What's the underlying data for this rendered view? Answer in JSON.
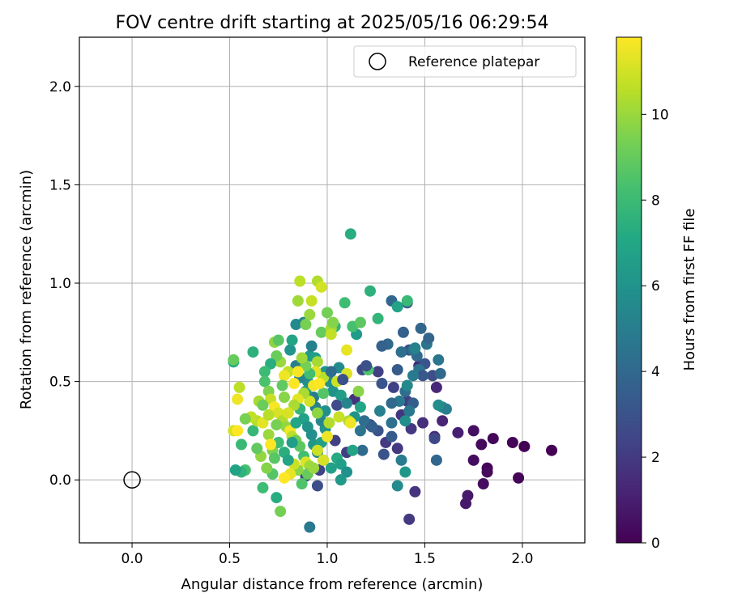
{
  "chart_data": {
    "type": "scatter",
    "title": "FOV centre drift starting at 2025/05/16 06:29:54",
    "xlabel": "Angular distance from reference (arcmin)",
    "ylabel": "Rotation from reference (arcmin)",
    "xlim": [
      -0.27,
      2.32
    ],
    "ylim": [
      -0.32,
      2.25
    ],
    "xticks": [
      0.0,
      0.5,
      1.0,
      1.5,
      2.0
    ],
    "xtick_labels": [
      "0.0",
      "0.5",
      "1.0",
      "1.5",
      "2.0"
    ],
    "yticks": [
      0.0,
      0.5,
      1.0,
      1.5,
      2.0
    ],
    "ytick_labels": [
      "0.0",
      "0.5",
      "1.0",
      "1.5",
      "2.0"
    ],
    "grid": true,
    "legend": {
      "placement": "top-right",
      "entries": [
        "Reference platepar"
      ]
    },
    "reference_point": {
      "x": 0.0,
      "y": 0.0,
      "label": "Reference platepar",
      "marker": "open-circle"
    },
    "colorbar": {
      "label": "Hours from first FF file",
      "colormap": "viridis",
      "range": [
        0,
        11.8
      ],
      "ticks": [
        0,
        2,
        4,
        6,
        8,
        10
      ],
      "tick_labels": [
        "0",
        "2",
        "4",
        "6",
        "8",
        "10"
      ]
    },
    "points": [
      {
        "x": 2.15,
        "y": 0.15,
        "h": 0.0
      },
      {
        "x": 2.01,
        "y": 0.17,
        "h": 0.0
      },
      {
        "x": 1.95,
        "y": 0.19,
        "h": 0.1
      },
      {
        "x": 1.98,
        "y": 0.01,
        "h": 0.1
      },
      {
        "x": 1.85,
        "y": 0.21,
        "h": 0.2
      },
      {
        "x": 1.82,
        "y": 0.06,
        "h": 0.2
      },
      {
        "x": 1.82,
        "y": 0.04,
        "h": 0.3
      },
      {
        "x": 1.8,
        "y": -0.02,
        "h": 0.4
      },
      {
        "x": 1.79,
        "y": 0.18,
        "h": 0.3
      },
      {
        "x": 1.75,
        "y": 0.25,
        "h": 0.5
      },
      {
        "x": 1.75,
        "y": 0.1,
        "h": 0.4
      },
      {
        "x": 1.72,
        "y": -0.08,
        "h": 0.8
      },
      {
        "x": 1.71,
        "y": -0.12,
        "h": 0.8
      },
      {
        "x": 1.67,
        "y": 0.24,
        "h": 1.0
      },
      {
        "x": 1.59,
        "y": 0.3,
        "h": 1.2
      },
      {
        "x": 1.56,
        "y": 0.47,
        "h": 1.3
      },
      {
        "x": 1.55,
        "y": 0.22,
        "h": 1.4
      },
      {
        "x": 1.49,
        "y": 0.29,
        "h": 1.6
      },
      {
        "x": 1.47,
        "y": 0.58,
        "h": 1.6
      },
      {
        "x": 1.45,
        "y": -0.06,
        "h": 1.8
      },
      {
        "x": 1.42,
        "y": -0.2,
        "h": 2.0
      },
      {
        "x": 1.43,
        "y": 0.26,
        "h": 2.0
      },
      {
        "x": 1.41,
        "y": 0.4,
        "h": 2.1
      },
      {
        "x": 1.38,
        "y": 0.33,
        "h": 1.8
      },
      {
        "x": 1.36,
        "y": 0.16,
        "h": 1.9
      },
      {
        "x": 1.34,
        "y": 0.47,
        "h": 2.3
      },
      {
        "x": 1.3,
        "y": 0.19,
        "h": 2.0
      },
      {
        "x": 1.22,
        "y": 0.28,
        "h": 2.4
      },
      {
        "x": 1.14,
        "y": 0.41,
        "h": 1.7
      },
      {
        "x": 1.1,
        "y": 0.14,
        "h": 2.1
      },
      {
        "x": 1.04,
        "y": 0.2,
        "h": 2.2
      },
      {
        "x": 0.98,
        "y": 0.1,
        "h": 2.5
      },
      {
        "x": 0.96,
        "y": 0.05,
        "h": 2.3
      },
      {
        "x": 0.95,
        "y": -0.03,
        "h": 2.8
      },
      {
        "x": 0.91,
        "y": -0.24,
        "h": 4.8
      },
      {
        "x": 0.89,
        "y": 0.02,
        "h": 2.5
      },
      {
        "x": 1.05,
        "y": 0.38,
        "h": 2.7
      },
      {
        "x": 1.18,
        "y": 0.56,
        "h": 2.6
      },
      {
        "x": 1.26,
        "y": 0.55,
        "h": 2.2
      },
      {
        "x": 1.29,
        "y": 0.13,
        "h": 3.0
      },
      {
        "x": 1.5,
        "y": 0.59,
        "h": 3.1
      },
      {
        "x": 1.54,
        "y": 0.53,
        "h": 2.8
      },
      {
        "x": 1.55,
        "y": 0.21,
        "h": 2.6
      },
      {
        "x": 1.42,
        "y": 0.66,
        "h": 2.9
      },
      {
        "x": 1.41,
        "y": 0.9,
        "h": 3.4
      },
      {
        "x": 1.39,
        "y": 0.75,
        "h": 3.6
      },
      {
        "x": 1.33,
        "y": 0.91,
        "h": 3.9
      },
      {
        "x": 1.31,
        "y": 0.69,
        "h": 4.0
      },
      {
        "x": 1.28,
        "y": 0.68,
        "h": 3.7
      },
      {
        "x": 1.38,
        "y": 0.65,
        "h": 4.3
      },
      {
        "x": 1.46,
        "y": 0.63,
        "h": 4.1
      },
      {
        "x": 1.51,
        "y": 0.69,
        "h": 4.5
      },
      {
        "x": 1.52,
        "y": 0.72,
        "h": 3.8
      },
      {
        "x": 1.48,
        "y": 0.77,
        "h": 3.9
      },
      {
        "x": 1.44,
        "y": 0.66,
        "h": 4.4
      },
      {
        "x": 1.47,
        "y": 0.56,
        "h": 4.6
      },
      {
        "x": 1.49,
        "y": 0.53,
        "h": 3.2
      },
      {
        "x": 1.44,
        "y": 0.39,
        "h": 3.5
      },
      {
        "x": 1.4,
        "y": 0.45,
        "h": 4.2
      },
      {
        "x": 1.37,
        "y": 0.4,
        "h": 4.7
      },
      {
        "x": 1.33,
        "y": 0.29,
        "h": 4.4
      },
      {
        "x": 1.33,
        "y": 0.22,
        "h": 3.3
      },
      {
        "x": 1.26,
        "y": 0.25,
        "h": 3.0
      },
      {
        "x": 1.18,
        "y": 0.15,
        "h": 4.1
      },
      {
        "x": 1.19,
        "y": 0.3,
        "h": 4.3
      },
      {
        "x": 1.23,
        "y": 0.27,
        "h": 3.6
      },
      {
        "x": 1.27,
        "y": 0.35,
        "h": 5.1
      },
      {
        "x": 1.38,
        "y": 0.1,
        "h": 4.9
      },
      {
        "x": 1.56,
        "y": 0.1,
        "h": 3.9
      },
      {
        "x": 1.58,
        "y": 0.54,
        "h": 4.0
      },
      {
        "x": 1.57,
        "y": 0.61,
        "h": 4.6
      },
      {
        "x": 1.59,
        "y": 0.37,
        "h": 5.4
      },
      {
        "x": 1.61,
        "y": 0.36,
        "h": 5.0
      },
      {
        "x": 1.57,
        "y": 0.38,
        "h": 5.7
      },
      {
        "x": 1.45,
        "y": 0.67,
        "h": 5.2
      },
      {
        "x": 1.44,
        "y": 0.53,
        "h": 4.8
      },
      {
        "x": 1.41,
        "y": 0.48,
        "h": 5.5
      },
      {
        "x": 1.42,
        "y": 0.35,
        "h": 4.7
      },
      {
        "x": 1.4,
        "y": 0.3,
        "h": 5.8
      },
      {
        "x": 1.36,
        "y": -0.03,
        "h": 5.6
      },
      {
        "x": 1.4,
        "y": 0.04,
        "h": 6.2
      },
      {
        "x": 1.36,
        "y": 0.88,
        "h": 6.8
      },
      {
        "x": 1.41,
        "y": 0.91,
        "h": 7.9
      },
      {
        "x": 1.26,
        "y": 0.82,
        "h": 7.7
      },
      {
        "x": 1.22,
        "y": 0.96,
        "h": 7.5
      },
      {
        "x": 1.15,
        "y": 0.74,
        "h": 6.4
      },
      {
        "x": 1.13,
        "y": 0.78,
        "h": 8.3
      },
      {
        "x": 1.09,
        "y": 0.9,
        "h": 8.1
      },
      {
        "x": 1.12,
        "y": 1.25,
        "h": 7.3
      },
      {
        "x": 1.17,
        "y": 0.8,
        "h": 8.8
      },
      {
        "x": 1.06,
        "y": 0.57,
        "h": 5.6
      },
      {
        "x": 1.01,
        "y": 0.5,
        "h": 6.1
      },
      {
        "x": 1.03,
        "y": 0.45,
        "h": 5.9
      },
      {
        "x": 1.07,
        "y": 0.43,
        "h": 6.5
      },
      {
        "x": 1.1,
        "y": 0.39,
        "h": 5.3
      },
      {
        "x": 1.14,
        "y": 0.32,
        "h": 6.0
      },
      {
        "x": 1.16,
        "y": 0.45,
        "h": 9.7
      },
      {
        "x": 1.11,
        "y": 0.3,
        "h": 10.3
      },
      {
        "x": 1.12,
        "y": 0.29,
        "h": 11.5
      },
      {
        "x": 1.17,
        "y": 0.37,
        "h": 7.0
      },
      {
        "x": 1.21,
        "y": 0.56,
        "h": 8.5
      },
      {
        "x": 1.13,
        "y": 0.15,
        "h": 6.9
      },
      {
        "x": 1.05,
        "y": 0.11,
        "h": 7.2
      },
      {
        "x": 1.07,
        "y": 0.08,
        "h": 6.6
      },
      {
        "x": 1.1,
        "y": 0.04,
        "h": 5.9
      },
      {
        "x": 1.07,
        "y": 0.0,
        "h": 6.3
      },
      {
        "x": 1.02,
        "y": 0.06,
        "h": 6.7
      },
      {
        "x": 0.99,
        "y": 0.26,
        "h": 6.0
      },
      {
        "x": 0.97,
        "y": 0.3,
        "h": 5.4
      },
      {
        "x": 0.94,
        "y": 0.37,
        "h": 5.1
      },
      {
        "x": 0.93,
        "y": 0.42,
        "h": 4.8
      },
      {
        "x": 0.9,
        "y": 0.5,
        "h": 5.8
      },
      {
        "x": 0.89,
        "y": 0.45,
        "h": 6.3
      },
      {
        "x": 0.86,
        "y": 0.52,
        "h": 5.3
      },
      {
        "x": 0.84,
        "y": 0.58,
        "h": 5.0
      },
      {
        "x": 0.81,
        "y": 0.66,
        "h": 6.1
      },
      {
        "x": 0.82,
        "y": 0.71,
        "h": 6.9
      },
      {
        "x": 0.84,
        "y": 0.79,
        "h": 5.6
      },
      {
        "x": 0.88,
        "y": 0.8,
        "h": 5.4
      },
      {
        "x": 0.91,
        "y": 0.63,
        "h": 6.4
      },
      {
        "x": 0.92,
        "y": 0.68,
        "h": 5.1
      },
      {
        "x": 0.94,
        "y": 0.62,
        "h": 6.6
      },
      {
        "x": 0.99,
        "y": 0.55,
        "h": 6.2
      },
      {
        "x": 1.0,
        "y": 0.52,
        "h": 5.5
      },
      {
        "x": 1.04,
        "y": 0.78,
        "h": 7.6
      },
      {
        "x": 1.0,
        "y": 0.85,
        "h": 9.3
      },
      {
        "x": 0.95,
        "y": 1.01,
        "h": 10.4
      },
      {
        "x": 0.97,
        "y": 0.98,
        "h": 11.0
      },
      {
        "x": 0.86,
        "y": 1.01,
        "h": 10.6
      },
      {
        "x": 0.85,
        "y": 0.91,
        "h": 10.1
      },
      {
        "x": 0.92,
        "y": 0.91,
        "h": 10.8
      },
      {
        "x": 0.91,
        "y": 0.84,
        "h": 10.0
      },
      {
        "x": 0.89,
        "y": 0.79,
        "h": 9.4
      },
      {
        "x": 0.97,
        "y": 0.75,
        "h": 9.0
      },
      {
        "x": 1.02,
        "y": 0.77,
        "h": 10.2
      },
      {
        "x": 1.03,
        "y": 0.8,
        "h": 9.6
      },
      {
        "x": 1.02,
        "y": 0.74,
        "h": 10.7
      },
      {
        "x": 1.1,
        "y": 0.66,
        "h": 11.4
      },
      {
        "x": 1.1,
        "y": 0.54,
        "h": 11.2
      },
      {
        "x": 1.05,
        "y": 0.5,
        "h": 10.9
      },
      {
        "x": 0.98,
        "y": 0.52,
        "h": 10.5
      },
      {
        "x": 0.95,
        "y": 0.6,
        "h": 10.2
      },
      {
        "x": 0.93,
        "y": 0.48,
        "h": 11.6
      },
      {
        "x": 0.91,
        "y": 0.4,
        "h": 11.0
      },
      {
        "x": 0.88,
        "y": 0.44,
        "h": 10.3
      },
      {
        "x": 0.85,
        "y": 0.41,
        "h": 11.3
      },
      {
        "x": 0.83,
        "y": 0.49,
        "h": 11.8
      },
      {
        "x": 0.8,
        "y": 0.55,
        "h": 10.7
      },
      {
        "x": 0.78,
        "y": 0.53,
        "h": 11.5
      },
      {
        "x": 0.76,
        "y": 0.6,
        "h": 10.0
      },
      {
        "x": 0.74,
        "y": 0.63,
        "h": 9.1
      },
      {
        "x": 0.73,
        "y": 0.7,
        "h": 9.8
      },
      {
        "x": 0.75,
        "y": 0.71,
        "h": 8.7
      },
      {
        "x": 0.71,
        "y": 0.59,
        "h": 7.4
      },
      {
        "x": 0.68,
        "y": 0.55,
        "h": 8.0
      },
      {
        "x": 0.68,
        "y": 0.5,
        "h": 8.4
      },
      {
        "x": 0.7,
        "y": 0.45,
        "h": 9.5
      },
      {
        "x": 0.71,
        "y": 0.41,
        "h": 10.8
      },
      {
        "x": 0.73,
        "y": 0.37,
        "h": 11.7
      },
      {
        "x": 0.75,
        "y": 0.34,
        "h": 11.1
      },
      {
        "x": 0.77,
        "y": 0.3,
        "h": 10.4
      },
      {
        "x": 0.79,
        "y": 0.27,
        "h": 9.9
      },
      {
        "x": 0.81,
        "y": 0.25,
        "h": 11.6
      },
      {
        "x": 0.82,
        "y": 0.22,
        "h": 10.6
      },
      {
        "x": 0.84,
        "y": 0.2,
        "h": 9.2
      },
      {
        "x": 0.86,
        "y": 0.17,
        "h": 8.8
      },
      {
        "x": 0.88,
        "y": 0.12,
        "h": 8.2
      },
      {
        "x": 0.89,
        "y": 0.09,
        "h": 11.2
      },
      {
        "x": 0.91,
        "y": 0.07,
        "h": 10.1
      },
      {
        "x": 0.9,
        "y": 0.03,
        "h": 9.0
      },
      {
        "x": 0.87,
        "y": -0.02,
        "h": 8.5
      },
      {
        "x": 0.85,
        "y": 0.05,
        "h": 9.7
      },
      {
        "x": 0.83,
        "y": 0.08,
        "h": 10.9
      },
      {
        "x": 0.81,
        "y": 0.03,
        "h": 11.4
      },
      {
        "x": 0.78,
        "y": 0.01,
        "h": 11.9
      },
      {
        "x": 0.76,
        "y": -0.16,
        "h": 9.3
      },
      {
        "x": 0.74,
        "y": -0.09,
        "h": 7.3
      },
      {
        "x": 0.72,
        "y": 0.03,
        "h": 8.6
      },
      {
        "x": 0.69,
        "y": 0.06,
        "h": 9.6
      },
      {
        "x": 0.67,
        "y": -0.04,
        "h": 8.1
      },
      {
        "x": 0.66,
        "y": 0.12,
        "h": 9.9
      },
      {
        "x": 0.64,
        "y": 0.16,
        "h": 8.9
      },
      {
        "x": 0.62,
        "y": 0.25,
        "h": 7.8
      },
      {
        "x": 0.64,
        "y": 0.3,
        "h": 10.5
      },
      {
        "x": 0.61,
        "y": 0.32,
        "h": 10.7
      },
      {
        "x": 0.58,
        "y": 0.31,
        "h": 9.4
      },
      {
        "x": 0.56,
        "y": 0.18,
        "h": 7.9
      },
      {
        "x": 0.58,
        "y": 0.05,
        "h": 8.3
      },
      {
        "x": 0.56,
        "y": 0.04,
        "h": 7.6
      },
      {
        "x": 0.53,
        "y": 0.05,
        "h": 6.8
      },
      {
        "x": 0.52,
        "y": 0.25,
        "h": 11.0
      },
      {
        "x": 0.54,
        "y": 0.25,
        "h": 11.8
      },
      {
        "x": 0.54,
        "y": 0.41,
        "h": 11.5
      },
      {
        "x": 0.55,
        "y": 0.47,
        "h": 10.6
      },
      {
        "x": 0.52,
        "y": 0.6,
        "h": 7.1
      },
      {
        "x": 0.52,
        "y": 0.61,
        "h": 9.0
      },
      {
        "x": 0.62,
        "y": 0.65,
        "h": 7.5
      },
      {
        "x": 0.65,
        "y": 0.4,
        "h": 10.2
      },
      {
        "x": 0.67,
        "y": 0.38,
        "h": 9.1
      },
      {
        "x": 0.67,
        "y": 0.29,
        "h": 11.3
      },
      {
        "x": 0.7,
        "y": 0.23,
        "h": 10.0
      },
      {
        "x": 0.72,
        "y": 0.15,
        "h": 9.5
      },
      {
        "x": 0.73,
        "y": 0.11,
        "h": 8.7
      },
      {
        "x": 0.75,
        "y": 0.19,
        "h": 8.0
      },
      {
        "x": 0.78,
        "y": 0.14,
        "h": 7.4
      },
      {
        "x": 0.8,
        "y": 0.1,
        "h": 6.9
      },
      {
        "x": 0.82,
        "y": 0.19,
        "h": 6.5
      },
      {
        "x": 0.84,
        "y": 0.29,
        "h": 7.0
      },
      {
        "x": 0.86,
        "y": 0.36,
        "h": 7.7
      },
      {
        "x": 0.88,
        "y": 0.31,
        "h": 6.7
      },
      {
        "x": 0.9,
        "y": 0.27,
        "h": 6.0
      },
      {
        "x": 0.92,
        "y": 0.23,
        "h": 5.8
      },
      {
        "x": 0.93,
        "y": 0.18,
        "h": 6.2
      },
      {
        "x": 0.95,
        "y": 0.14,
        "h": 5.5
      },
      {
        "x": 0.97,
        "y": 0.19,
        "h": 6.6
      },
      {
        "x": 0.99,
        "y": 0.35,
        "h": 5.9
      },
      {
        "x": 1.01,
        "y": 0.29,
        "h": 10.4
      },
      {
        "x": 1.0,
        "y": 0.22,
        "h": 11.5
      },
      {
        "x": 0.98,
        "y": 0.1,
        "h": 11.1
      },
      {
        "x": 0.95,
        "y": 0.15,
        "h": 10.9
      },
      {
        "x": 0.93,
        "y": 0.06,
        "h": 10.0
      },
      {
        "x": 0.95,
        "y": 0.34,
        "h": 9.8
      },
      {
        "x": 0.98,
        "y": 0.44,
        "h": 8.6
      },
      {
        "x": 0.96,
        "y": 0.49,
        "h": 11.9
      },
      {
        "x": 0.94,
        "y": 0.55,
        "h": 11.3
      },
      {
        "x": 0.91,
        "y": 0.54,
        "h": 8.2
      },
      {
        "x": 0.89,
        "y": 0.58,
        "h": 9.3
      },
      {
        "x": 0.87,
        "y": 0.62,
        "h": 10.1
      },
      {
        "x": 0.85,
        "y": 0.55,
        "h": 11.7
      },
      {
        "x": 0.83,
        "y": 0.38,
        "h": 10.3
      },
      {
        "x": 0.8,
        "y": 0.34,
        "h": 11.1
      },
      {
        "x": 0.78,
        "y": 0.42,
        "h": 9.7
      },
      {
        "x": 0.77,
        "y": 0.48,
        "h": 8.9
      },
      {
        "x": 0.74,
        "y": 0.28,
        "h": 9.4
      },
      {
        "x": 0.7,
        "y": 0.33,
        "h": 10.5
      },
      {
        "x": 0.71,
        "y": 0.18,
        "h": 11.9
      },
      {
        "x": 1.06,
        "y": 0.32,
        "h": 10.8
      },
      {
        "x": 1.2,
        "y": 0.58,
        "h": 2.9
      },
      {
        "x": 1.28,
        "y": 0.49,
        "h": 3.1
      },
      {
        "x": 1.33,
        "y": 0.39,
        "h": 4.0
      },
      {
        "x": 1.36,
        "y": 0.56,
        "h": 3.4
      },
      {
        "x": 1.17,
        "y": 0.25,
        "h": 4.5
      },
      {
        "x": 1.02,
        "y": 0.55,
        "h": 4.2
      },
      {
        "x": 1.08,
        "y": 0.51,
        "h": 2.9
      }
    ]
  }
}
